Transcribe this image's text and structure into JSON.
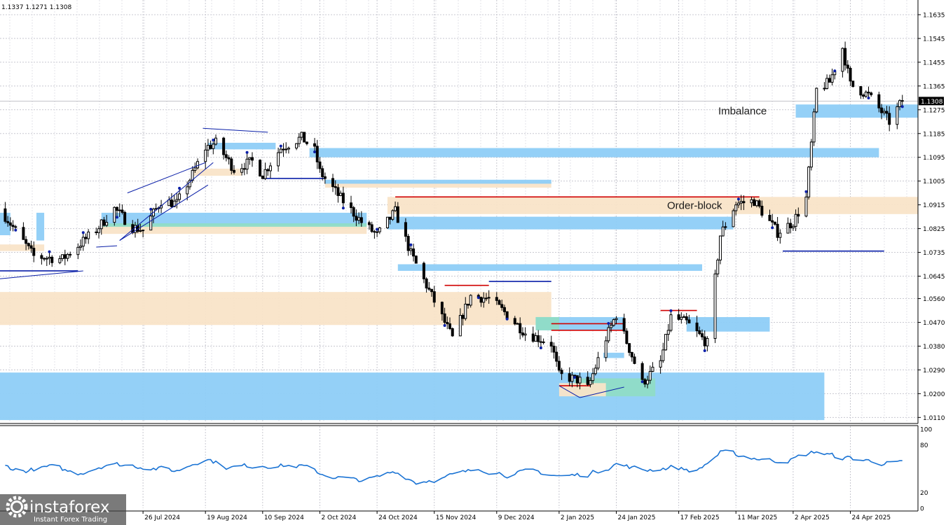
{
  "header": {
    "ohlc": "1.1337 1.1271 1.1308"
  },
  "branding": {
    "name": "instaforex",
    "tagline": "Instant Forex Trading"
  },
  "colors": {
    "bull": "#000000",
    "bear": "#000000",
    "grid": "#c8c8d0",
    "imbalance_zone": "#8ecdf7",
    "orderblock_zone": "#f9e4c8",
    "teal_zone": "#8fdcc6",
    "red_level": "#d00000",
    "blue_level": "#0a1fa8",
    "oscillator": "#1a73d4",
    "price_tag": "#000000"
  },
  "chart_data": [
    {
      "type": "candlestick",
      "title": "",
      "y_ticks": [
        "1.1635",
        "1.1545",
        "1.1455",
        "1.1365",
        "1.1275",
        "1.1185",
        "1.1095",
        "1.1005",
        "1.0915",
        "1.0825",
        "1.0735",
        "1.0645",
        "1.0560",
        "1.0470",
        "1.0380",
        "1.0290",
        "1.0200",
        "1.0110"
      ],
      "ylim": [
        1.0095,
        1.168
      ],
      "current_price": "1.1308",
      "x_ticks": [
        "26 Jul 2024",
        "19 Aug 2024",
        "10 Sep 2024",
        "2 Oct 2024",
        "24 Oct 2024",
        "15 Nov 2024",
        "9 Dec 2024",
        "2 Jan 2025",
        "24 Jan 2025",
        "17 Feb 2025",
        "11 Mar 2025",
        "2 Apr 2025",
        "24 Apr 2025"
      ],
      "xlim": [
        "2024-06-01",
        "2025-05-20"
      ],
      "anchors": [
        [
          "2024-06-01",
          1.09
        ],
        [
          "2024-06-14",
          1.072
        ],
        [
          "2024-06-25",
          1.071
        ],
        [
          "2024-07-08",
          1.082
        ],
        [
          "2024-07-15",
          1.09
        ],
        [
          "2024-07-22",
          1.083
        ],
        [
          "2024-07-26",
          1.082
        ],
        [
          "2024-08-02",
          1.093
        ],
        [
          "2024-08-08",
          1.092
        ],
        [
          "2024-08-14",
          1.103
        ],
        [
          "2024-08-19",
          1.113
        ],
        [
          "2024-08-23",
          1.115
        ],
        [
          "2024-08-30",
          1.105
        ],
        [
          "2024-09-06",
          1.108
        ],
        [
          "2024-09-10",
          1.103
        ],
        [
          "2024-09-17",
          1.113
        ],
        [
          "2024-09-25",
          1.117
        ],
        [
          "2024-09-30",
          1.112
        ],
        [
          "2024-10-02",
          1.104
        ],
        [
          "2024-10-10",
          1.094
        ],
        [
          "2024-10-18",
          1.085
        ],
        [
          "2024-10-24",
          1.08
        ],
        [
          "2024-10-31",
          1.089
        ],
        [
          "2024-11-06",
          1.073
        ],
        [
          "2024-11-15",
          1.055
        ],
        [
          "2024-11-22",
          1.041
        ],
        [
          "2024-11-29",
          1.057
        ],
        [
          "2024-12-06",
          1.056
        ],
        [
          "2024-12-13",
          1.05
        ],
        [
          "2024-12-20",
          1.043
        ],
        [
          "2024-12-30",
          1.039
        ],
        [
          "2025-01-02",
          1.027
        ],
        [
          "2025-01-10",
          1.025
        ],
        [
          "2025-01-13",
          1.022
        ],
        [
          "2025-01-20",
          1.041
        ],
        [
          "2025-01-24",
          1.05
        ],
        [
          "2025-02-03",
          1.024
        ],
        [
          "2025-02-10",
          1.032
        ],
        [
          "2025-02-14",
          1.049
        ],
        [
          "2025-02-20",
          1.047
        ],
        [
          "2025-02-28",
          1.039
        ],
        [
          "2025-03-05",
          1.08
        ],
        [
          "2025-03-11",
          1.092
        ],
        [
          "2025-03-18",
          1.093
        ],
        [
          "2025-03-27",
          1.081
        ],
        [
          "2025-04-02",
          1.085
        ],
        [
          "2025-04-07",
          1.094
        ],
        [
          "2025-04-11",
          1.135
        ],
        [
          "2025-04-16",
          1.138
        ],
        [
          "2025-04-21",
          1.151
        ],
        [
          "2025-04-24",
          1.137
        ],
        [
          "2025-05-01",
          1.133
        ],
        [
          "2025-05-09",
          1.123
        ],
        [
          "2025-05-14",
          1.131
        ]
      ],
      "zones": [
        {
          "kind": "imbalance",
          "label": "Imbalance",
          "from": "2025-04-03",
          "to": "2025-06-02",
          "top": 1.1295,
          "bottom": 1.1245
        },
        {
          "kind": "imbalance",
          "label": "",
          "from": "2024-09-28",
          "to": "2025-05-05",
          "top": 1.113,
          "bottom": 1.1095
        },
        {
          "kind": "imbalance",
          "label": "",
          "from": "2024-08-20",
          "to": "2024-09-15",
          "top": 1.115,
          "bottom": 1.1125
        },
        {
          "kind": "orderblock",
          "label": "Order-block",
          "from": "2024-10-28",
          "to": "2025-05-29",
          "top": 1.0945,
          "bottom": 1.088
        },
        {
          "kind": "orderblock",
          "label": "",
          "from": "2024-08-14",
          "to": "2024-09-02",
          "top": 1.1052,
          "bottom": 1.1025
        },
        {
          "kind": "orderblock",
          "label": "",
          "from": "2024-10-04",
          "to": "2024-12-30",
          "top": 1.1002,
          "bottom": 1.098
        },
        {
          "kind": "imbalance",
          "label": "",
          "from": "2024-10-04",
          "to": "2024-12-30",
          "top": 1.101,
          "bottom": 1.0995
        },
        {
          "kind": "imbalance",
          "label": "",
          "from": "2024-07-10",
          "to": "2024-10-20",
          "top": 1.0885,
          "bottom": 1.0838
        },
        {
          "kind": "teal",
          "label": "",
          "from": "2024-07-10",
          "to": "2024-10-20",
          "top": 1.0845,
          "bottom": 1.0825
        },
        {
          "kind": "orderblock",
          "label": "",
          "from": "2024-07-10",
          "to": "2024-10-20",
          "top": 1.0832,
          "bottom": 1.0805
        },
        {
          "kind": "imbalance",
          "label": "",
          "from": "2024-10-28",
          "to": "2025-03-10",
          "top": 1.087,
          "bottom": 1.0822
        },
        {
          "kind": "imbalance",
          "label": "",
          "from": "2024-06-01",
          "to": "2024-06-05",
          "top": 1.0885,
          "bottom": 1.08
        },
        {
          "kind": "imbalance",
          "label": "",
          "from": "2024-06-15",
          "to": "2024-06-18",
          "top": 1.0885,
          "bottom": 1.078
        },
        {
          "kind": "orderblock",
          "label": "",
          "from": "2024-06-01",
          "to": "2024-06-18",
          "top": 1.0765,
          "bottom": 1.074
        },
        {
          "kind": "imbalance",
          "label": "",
          "from": "2024-11-01",
          "to": "2025-02-26",
          "top": 1.069,
          "bottom": 1.0665
        },
        {
          "kind": "orderblock",
          "label": "",
          "from": "2024-06-01",
          "to": "2024-12-30",
          "top": 1.0585,
          "bottom": 1.046
        },
        {
          "kind": "imbalance",
          "label": "",
          "from": "2024-12-24",
          "to": "2025-01-27",
          "top": 1.049,
          "bottom": 1.044
        },
        {
          "kind": "teal",
          "label": "",
          "from": "2024-12-24",
          "to": "2025-01-02",
          "top": 1.049,
          "bottom": 1.044
        },
        {
          "kind": "imbalance",
          "label": "",
          "from": "2025-02-20",
          "to": "2025-03-24",
          "top": 1.049,
          "bottom": 1.0435
        },
        {
          "kind": "imbalance",
          "label": "",
          "from": "2025-01-19",
          "to": "2025-01-27",
          "top": 1.0355,
          "bottom": 1.0335
        },
        {
          "kind": "imbalance",
          "label": "",
          "from": "2024-06-01",
          "to": "2025-04-14",
          "top": 1.028,
          "bottom": 1.01
        },
        {
          "kind": "teal",
          "label": "",
          "from": "2025-01-08",
          "to": "2025-02-08",
          "top": 1.0258,
          "bottom": 1.019
        },
        {
          "kind": "orderblock",
          "label": "",
          "from": "2025-01-02",
          "to": "2025-01-20",
          "top": 1.024,
          "bottom": 1.019
        }
      ],
      "levels": [
        {
          "color": "red",
          "from": "2024-10-31",
          "to": "2025-03-20",
          "price": 1.0945
        },
        {
          "color": "red",
          "from": "2024-11-19",
          "to": "2024-12-06",
          "price": 1.061
        },
        {
          "color": "red",
          "from": "2024-12-30",
          "to": "2025-01-27",
          "price": 1.0465
        },
        {
          "color": "red",
          "from": "2024-12-30",
          "to": "2025-01-27",
          "price": 1.044
        },
        {
          "color": "red",
          "from": "2025-02-10",
          "to": "2025-02-24",
          "price": 1.0515
        },
        {
          "color": "red",
          "from": "2025-01-02",
          "to": "2025-01-14",
          "price": 1.023
        },
        {
          "color": "blue",
          "from": "2024-09-10",
          "to": "2024-10-04",
          "price": 1.1015
        },
        {
          "color": "blue",
          "from": "2024-12-06",
          "to": "2024-12-30",
          "price": 1.0625
        },
        {
          "color": "blue",
          "from": "2025-03-29",
          "to": "2025-05-07",
          "price": 1.074
        },
        {
          "color": "blue",
          "from": "2024-06-01",
          "to": "2024-07-01",
          "price": 1.0665
        }
      ],
      "trendlines": [
        {
          "from": [
            "2024-06-01",
            1.0635
          ],
          "to": [
            "2024-07-03",
            1.0665
          ]
        },
        {
          "from": [
            "2024-07-08",
            1.0755
          ],
          "to": [
            "2024-07-16",
            1.076
          ]
        },
        {
          "from": [
            "2024-07-17",
            1.078
          ],
          "to": [
            "2024-08-22",
            1.1075
          ]
        },
        {
          "from": [
            "2024-07-17",
            1.078
          ],
          "to": [
            "2024-08-20",
            1.099
          ]
        },
        {
          "from": [
            "2024-07-20",
            1.096
          ],
          "to": [
            "2024-08-19",
            1.1075
          ]
        },
        {
          "from": [
            "2024-08-18",
            1.1205
          ],
          "to": [
            "2024-09-12",
            1.119
          ]
        },
        {
          "from": [
            "2025-01-02",
            1.023
          ],
          "to": [
            "2025-01-10",
            1.0185
          ]
        },
        {
          "from": [
            "2025-01-10",
            1.0185
          ],
          "to": [
            "2025-01-27",
            1.0225
          ]
        }
      ]
    },
    {
      "type": "line",
      "title": "",
      "y_ticks": [
        "100",
        "80",
        "20",
        "0"
      ],
      "ylim": [
        0,
        100
      ],
      "anchors": [
        [
          "2024-06-01",
          55
        ],
        [
          "2024-06-10",
          47
        ],
        [
          "2024-06-20",
          52
        ],
        [
          "2024-07-01",
          44
        ],
        [
          "2024-07-12",
          56
        ],
        [
          "2024-07-26",
          53
        ],
        [
          "2024-08-08",
          47
        ],
        [
          "2024-08-19",
          64
        ],
        [
          "2024-08-28",
          51
        ],
        [
          "2024-09-10",
          55
        ],
        [
          "2024-09-25",
          53
        ],
        [
          "2024-10-02",
          44
        ],
        [
          "2024-10-15",
          35
        ],
        [
          "2024-10-24",
          38
        ],
        [
          "2024-10-31",
          47
        ],
        [
          "2024-11-08",
          33
        ],
        [
          "2024-11-22",
          41
        ],
        [
          "2024-12-03",
          50
        ],
        [
          "2024-12-13",
          43
        ],
        [
          "2024-12-24",
          46
        ],
        [
          "2025-01-03",
          40
        ],
        [
          "2025-01-13",
          43
        ],
        [
          "2025-01-24",
          56
        ],
        [
          "2025-02-03",
          48
        ],
        [
          "2025-02-14",
          52
        ],
        [
          "2025-02-24",
          47
        ],
        [
          "2025-03-05",
          70
        ],
        [
          "2025-03-14",
          66
        ],
        [
          "2025-03-25",
          60
        ],
        [
          "2025-04-02",
          62
        ],
        [
          "2025-04-11",
          72
        ],
        [
          "2025-04-18",
          65
        ],
        [
          "2025-04-24",
          63
        ],
        [
          "2025-05-05",
          58
        ],
        [
          "2025-05-14",
          56
        ]
      ]
    }
  ]
}
